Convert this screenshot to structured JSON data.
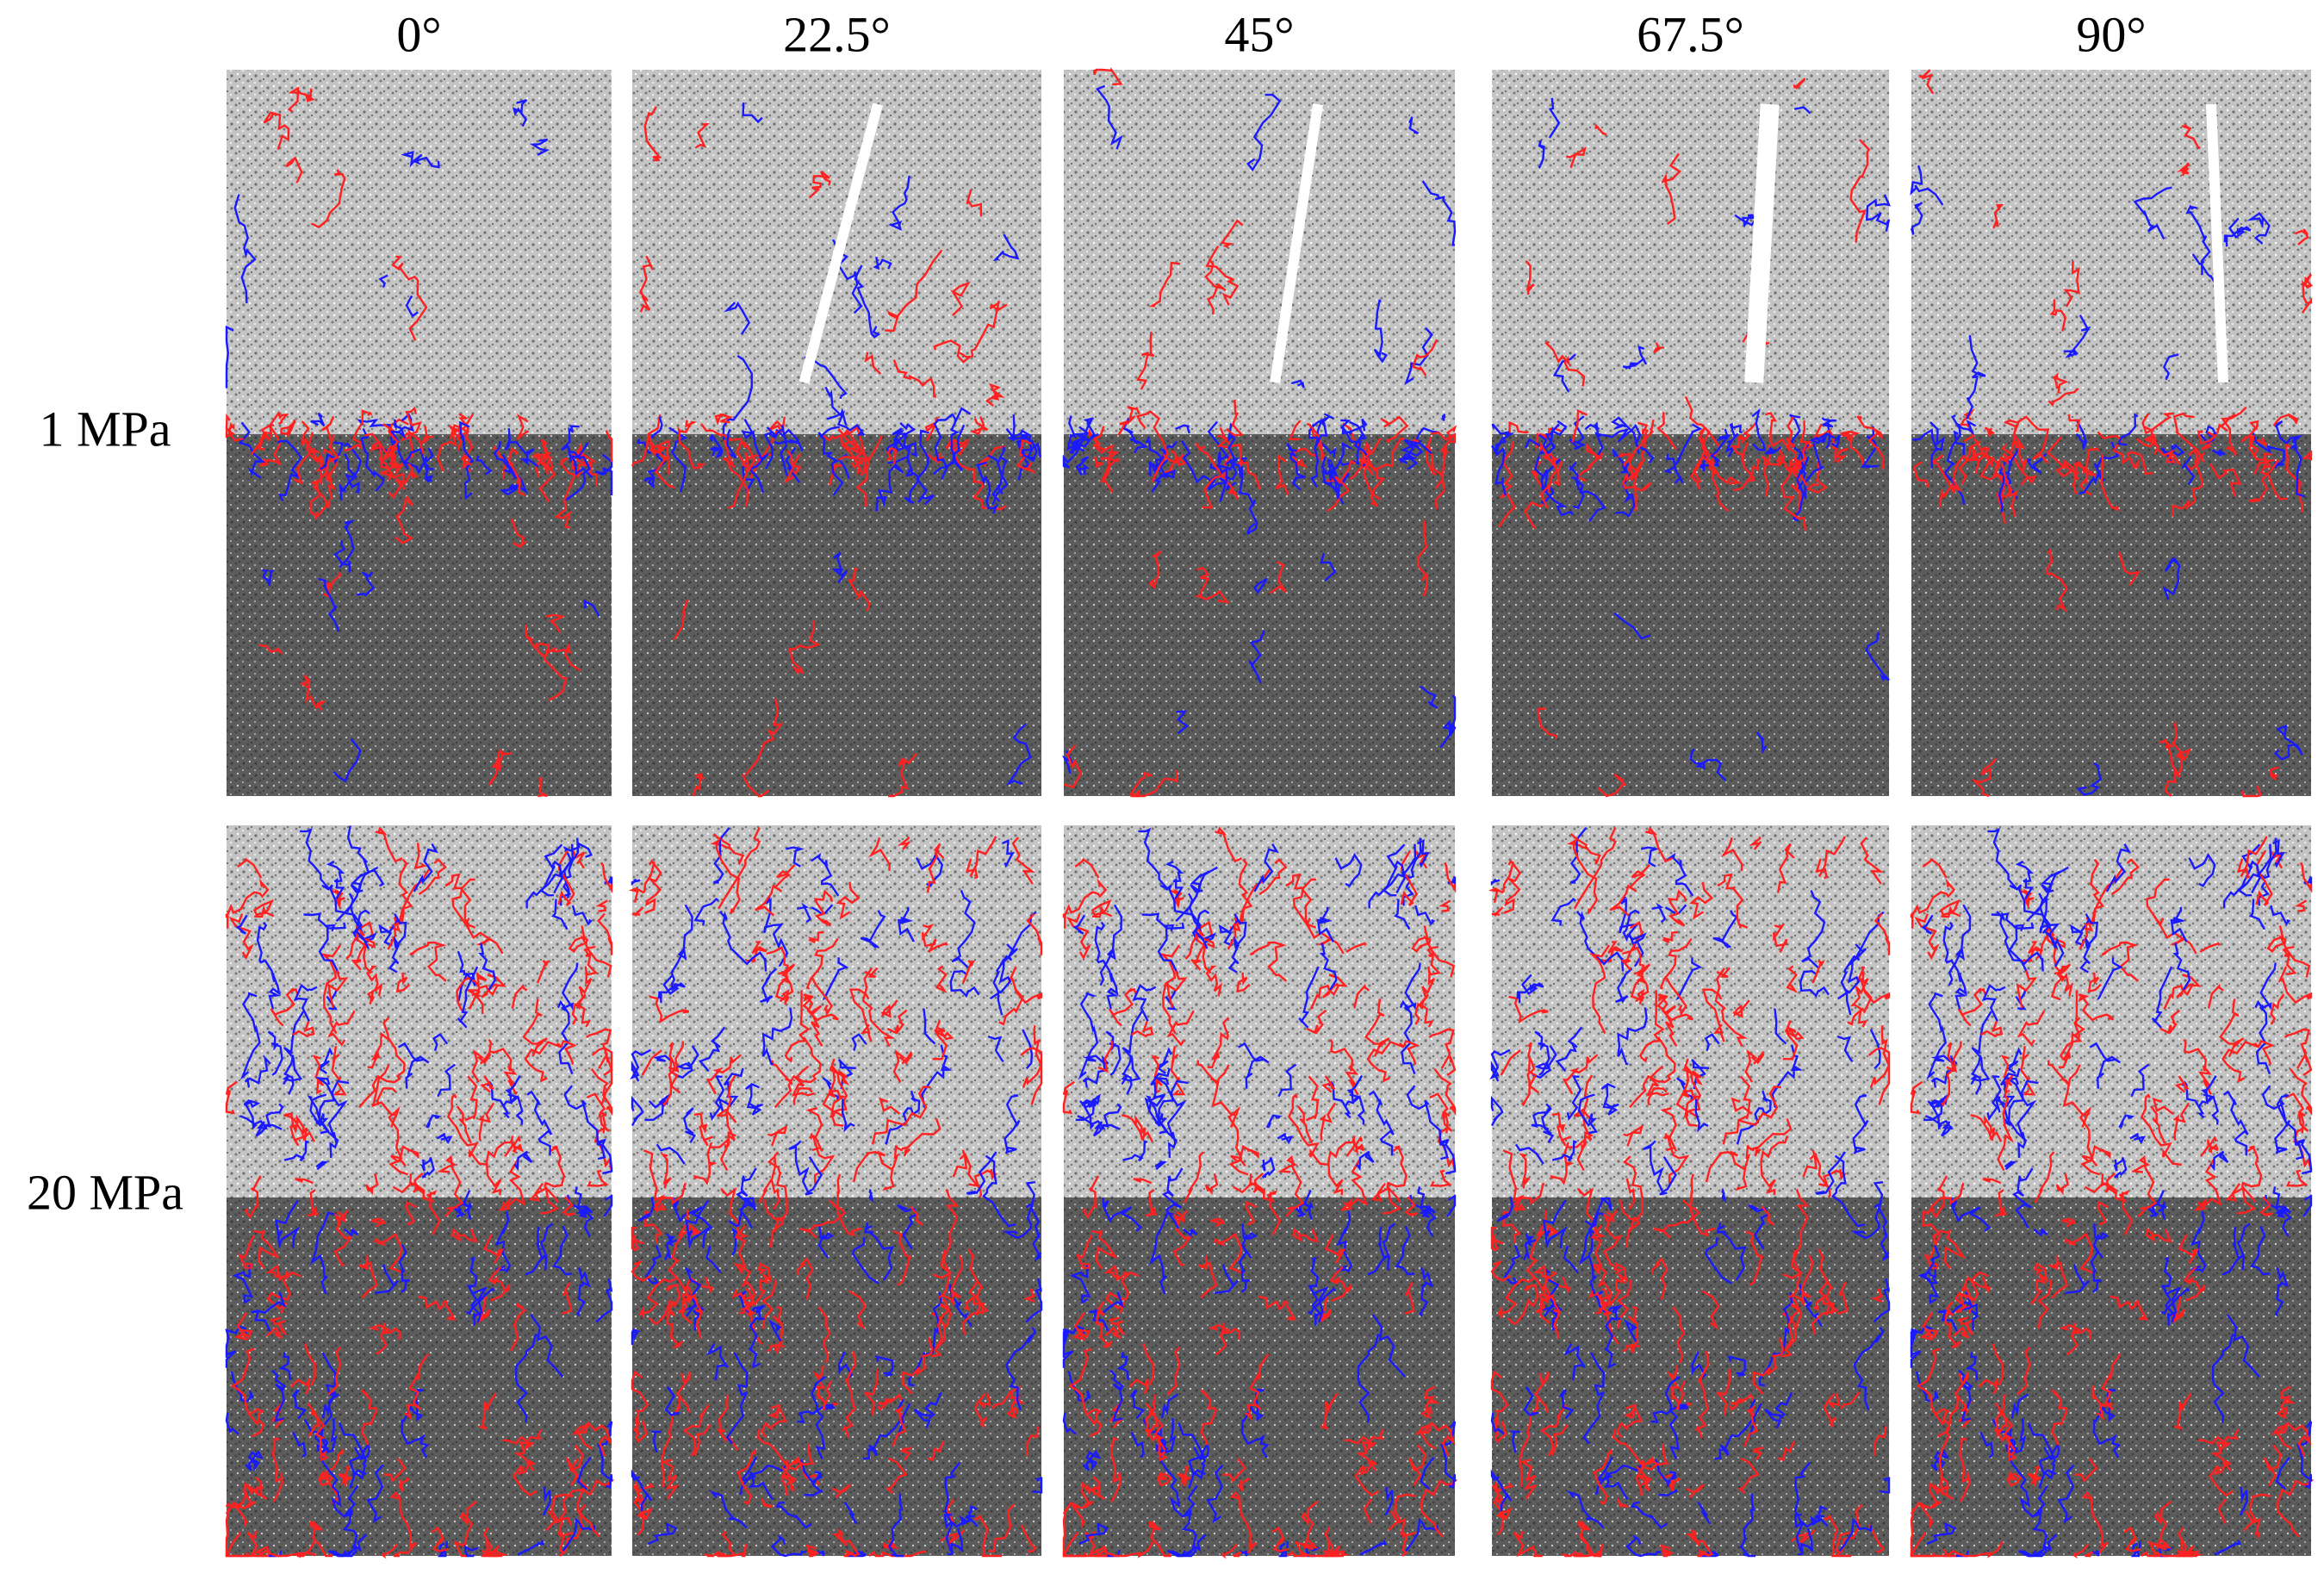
{
  "columns": [
    "0°",
    "22.5°",
    "45°",
    "67.5°",
    "90°"
  ],
  "rows": [
    "1 MPa",
    "20 MPa"
  ]
}
